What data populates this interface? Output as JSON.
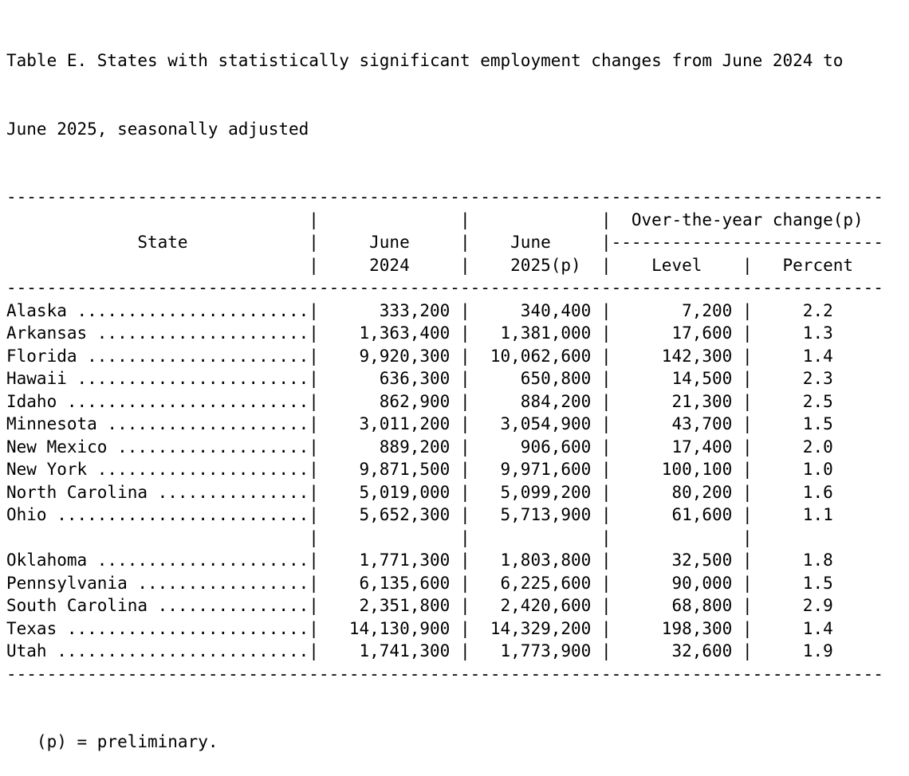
{
  "document": {
    "title_lines": [
      "Table E. States with statistically significant employment changes from June 2024 to",
      "June 2025, seasonally adjusted"
    ],
    "footnote": "(p) = preliminary."
  },
  "table": {
    "headers": {
      "state": "State",
      "col_june_2024": [
        "June",
        "2024"
      ],
      "col_june_2025": [
        "June",
        "2025(p)"
      ],
      "group": "Over-the-year change(p)",
      "level": "Level",
      "percent": "Percent"
    },
    "rows": [
      {
        "state": "Alaska",
        "june_2024": "333,200",
        "june_2025": "340,400",
        "level": "7,200",
        "percent": "2.2"
      },
      {
        "state": "Arkansas",
        "june_2024": "1,363,400",
        "june_2025": "1,381,000",
        "level": "17,600",
        "percent": "1.3"
      },
      {
        "state": "Florida",
        "june_2024": "9,920,300",
        "june_2025": "10,062,600",
        "level": "142,300",
        "percent": "1.4"
      },
      {
        "state": "Hawaii",
        "june_2024": "636,300",
        "june_2025": "650,800",
        "level": "14,500",
        "percent": "2.3"
      },
      {
        "state": "Idaho",
        "june_2024": "862,900",
        "june_2025": "884,200",
        "level": "21,300",
        "percent": "2.5"
      },
      {
        "state": "Minnesota",
        "june_2024": "3,011,200",
        "june_2025": "3,054,900",
        "level": "43,700",
        "percent": "1.5"
      },
      {
        "state": "New Mexico",
        "june_2024": "889,200",
        "june_2025": "906,600",
        "level": "17,400",
        "percent": "2.0"
      },
      {
        "state": "New York",
        "june_2024": "9,871,500",
        "june_2025": "9,971,600",
        "level": "100,100",
        "percent": "1.0"
      },
      {
        "state": "North Carolina",
        "june_2024": "5,019,000",
        "june_2025": "5,099,200",
        "level": "80,200",
        "percent": "1.6"
      },
      {
        "state": "Ohio",
        "june_2024": "5,652,300",
        "june_2025": "5,713,900",
        "level": "61,600",
        "percent": "1.1"
      },
      {
        "state": "Oklahoma",
        "june_2024": "1,771,300",
        "june_2025": "1,803,800",
        "level": "32,500",
        "percent": "1.8"
      },
      {
        "state": "Pennsylvania",
        "june_2024": "6,135,600",
        "june_2025": "6,225,600",
        "level": "90,000",
        "percent": "1.5"
      },
      {
        "state": "South Carolina",
        "june_2024": "2,351,800",
        "june_2025": "2,420,600",
        "level": "68,800",
        "percent": "2.9"
      },
      {
        "state": "Texas",
        "june_2024": "14,130,900",
        "june_2025": "14,329,200",
        "level": "198,300",
        "percent": "1.4"
      },
      {
        "state": "Utah",
        "june_2024": "1,741,300",
        "june_2025": "1,773,900",
        "level": "32,600",
        "percent": "1.9"
      }
    ],
    "separator_after": "Ohio"
  },
  "colors": {
    "text": "#000000",
    "background": "#ffffff"
  }
}
